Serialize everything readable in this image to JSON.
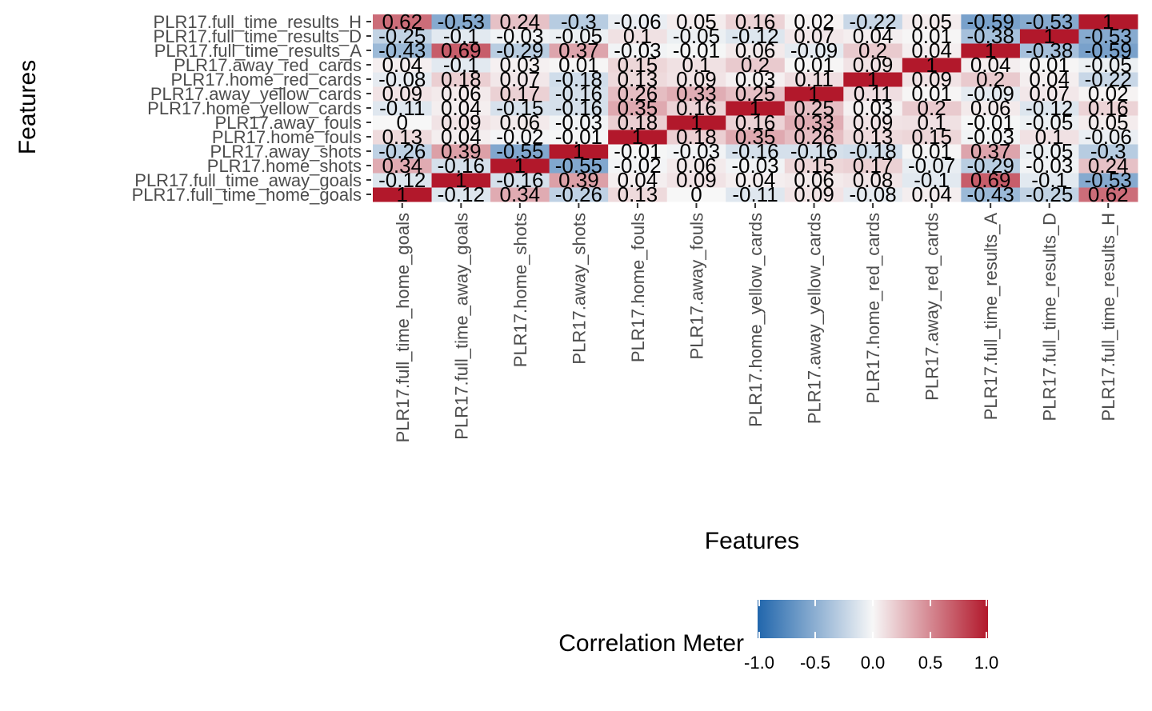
{
  "chart_data": {
    "type": "heatmap",
    "xlabel": "Features",
    "ylabel": "Features",
    "x_categories": [
      "PLR17.full_time_home_goals",
      "PLR17.full_time_away_goals",
      "PLR17.home_shots",
      "PLR17.away_shots",
      "PLR17.home_fouls",
      "PLR17.away_fouls",
      "PLR17.home_yellow_cards",
      "PLR17.away_yellow_cards",
      "PLR17.home_red_cards",
      "PLR17.away_red_cards",
      "PLR17.full_time_results_A",
      "PLR17.full_time_results_D",
      "PLR17.full_time_results_H"
    ],
    "y_categories": [
      "PLR17.full_time_home_goals",
      "PLR17.full_time_away_goals",
      "PLR17.home_shots",
      "PLR17.away_shots",
      "PLR17.home_fouls",
      "PLR17.away_fouls",
      "PLR17.home_yellow_cards",
      "PLR17.away_yellow_cards",
      "PLR17.home_red_cards",
      "PLR17.away_red_cards",
      "PLR17.full_time_results_A",
      "PLR17.full_time_results_D",
      "PLR17.full_time_results_H"
    ],
    "values": [
      [
        1,
        -0.12,
        0.34,
        -0.26,
        0.13,
        0,
        -0.11,
        0.09,
        -0.08,
        0.04,
        -0.43,
        -0.25,
        0.62
      ],
      [
        -0.12,
        1,
        -0.16,
        0.39,
        0.04,
        0.09,
        0.04,
        0.06,
        0.08,
        -0.1,
        0.69,
        -0.1,
        -0.53
      ],
      [
        0.34,
        -0.16,
        1,
        -0.55,
        -0.02,
        0.06,
        -0.03,
        0.15,
        0.17,
        -0.07,
        -0.29,
        -0.03,
        0.24
      ],
      [
        -0.26,
        0.39,
        -0.55,
        1,
        -0.01,
        -0.03,
        -0.16,
        -0.16,
        -0.18,
        0.01,
        0.37,
        -0.05,
        -0.3
      ],
      [
        0.13,
        0.04,
        -0.02,
        -0.01,
        1,
        0.18,
        0.35,
        0.26,
        0.13,
        0.15,
        -0.03,
        0.1,
        -0.06
      ],
      [
        0,
        0.09,
        0.06,
        -0.03,
        0.18,
        1,
        0.16,
        0.33,
        0.09,
        0.1,
        -0.01,
        -0.05,
        0.05
      ],
      [
        -0.11,
        0.04,
        -0.15,
        -0.16,
        0.35,
        0.16,
        1,
        0.25,
        0.03,
        0.2,
        0.06,
        -0.12,
        0.16
      ],
      [
        0.09,
        0.06,
        0.17,
        -0.16,
        0.26,
        0.33,
        0.25,
        1,
        0.11,
        0.01,
        -0.09,
        0.07,
        0.02
      ],
      [
        -0.08,
        0.18,
        0.07,
        -0.18,
        0.13,
        0.09,
        0.03,
        0.11,
        1,
        0.09,
        0.2,
        0.04,
        -0.22
      ],
      [
        0.04,
        -0.1,
        0.03,
        0.01,
        0.15,
        0.1,
        0.2,
        0.01,
        0.09,
        1,
        0.04,
        0.01,
        -0.05
      ],
      [
        -0.43,
        0.69,
        -0.29,
        0.37,
        -0.03,
        -0.01,
        0.06,
        -0.09,
        0.2,
        0.04,
        1,
        -0.38,
        -0.59
      ],
      [
        -0.25,
        -0.1,
        -0.03,
        -0.05,
        0.1,
        -0.05,
        -0.12,
        0.07,
        0.04,
        0.01,
        -0.38,
        1,
        -0.53
      ],
      [
        0.62,
        -0.53,
        0.24,
        -0.3,
        -0.06,
        0.05,
        0.16,
        0.02,
        -0.22,
        0.05,
        -0.59,
        -0.53,
        1
      ]
    ],
    "labels": [
      [
        "1",
        "-0.12",
        "0.34",
        "-0.26",
        "0.13",
        "0",
        "-0.11",
        "0.09",
        "-0.08",
        "0.04",
        "-0.43",
        "-0.25",
        "0.62"
      ],
      [
        "-0.12",
        "1",
        "-0.16",
        "0.39",
        "0.04",
        "0.09",
        "0.04",
        "0.06",
        "0.08",
        "-0.1",
        "0.69",
        "-0.1",
        "-0.53"
      ],
      [
        "0.34",
        "-0.16",
        "1",
        "-0.55",
        "-0.02",
        "0.06",
        "-0.03",
        "0.15",
        "0.17",
        "-0.07",
        "-0.29",
        "-0.03",
        "0.24"
      ],
      [
        "-0.26",
        "0.39",
        "-0.55",
        "1",
        "-0.01",
        "-0.03",
        "-0.16",
        "-0.16",
        "-0.18",
        "0.01",
        "0.37",
        "-0.05",
        "-0.3"
      ],
      [
        "0.13",
        "0.04",
        "-0.02",
        "-0.01",
        "1",
        "0.18",
        "0.35",
        "0.26",
        "0.13",
        "0.15",
        "-0.03",
        "0.1",
        "-0.06"
      ],
      [
        "0",
        "0.09",
        "0.06",
        "-0.03",
        "0.18",
        "1",
        "0.16",
        "0.33",
        "0.09",
        "0.1",
        "-0.01",
        "-0.05",
        "0.05"
      ],
      [
        "-0.11",
        "0.04",
        "-0.15",
        "-0.16",
        "0.35",
        "0.16",
        "1",
        "0.25",
        "0.03",
        "0.2",
        "0.06",
        "-0.12",
        "0.16"
      ],
      [
        "0.09",
        "0.06",
        "0.17",
        "-0.16",
        "0.26",
        "0.33",
        "0.25",
        "1",
        "0.11",
        "0.01",
        "-0.09",
        "0.07",
        "0.02"
      ],
      [
        "-0.08",
        "0.18",
        "0.07",
        "-0.18",
        "0.13",
        "0.09",
        "0.03",
        "0.11",
        "1",
        "0.09",
        "0.2",
        "0.04",
        "-0.22"
      ],
      [
        "0.04",
        "-0.1",
        "0.03",
        "0.01",
        "0.15",
        "0.1",
        "0.2",
        "0.01",
        "0.09",
        "1",
        "0.04",
        "0.01",
        "-0.05"
      ],
      [
        "-0.43",
        "0.69",
        "-0.29",
        "0.37",
        "-0.03",
        "-0.01",
        "0.06",
        "-0.09",
        "0.2",
        "0.04",
        "1",
        "-0.38",
        "-0.59"
      ],
      [
        "-0.25",
        "-0.1",
        "-0.03",
        "-0.05",
        "0.1",
        "-0.05",
        "-0.12",
        "0.07",
        "0.04",
        "0.01",
        "-0.38",
        "1",
        "-0.53"
      ],
      [
        "0.62",
        "-0.53",
        "0.24",
        "-0.3",
        "-0.06",
        "0.05",
        "0.16",
        "0.02",
        "-0.22",
        "0.05",
        "-0.59",
        "-0.53",
        "1"
      ]
    ],
    "color_range": [
      -1,
      1
    ],
    "colors": {
      "low": "#2166ac",
      "mid": "#f7f7f7",
      "high": "#b2182b"
    },
    "legend": {
      "title": "Correlation Meter",
      "ticks": [
        "-1.0",
        "-0.5",
        "0.0",
        "0.5",
        "1.0"
      ],
      "tick_values": [
        -1,
        -0.5,
        0,
        0.5,
        1
      ],
      "position": "bottom"
    },
    "grid": true
  }
}
